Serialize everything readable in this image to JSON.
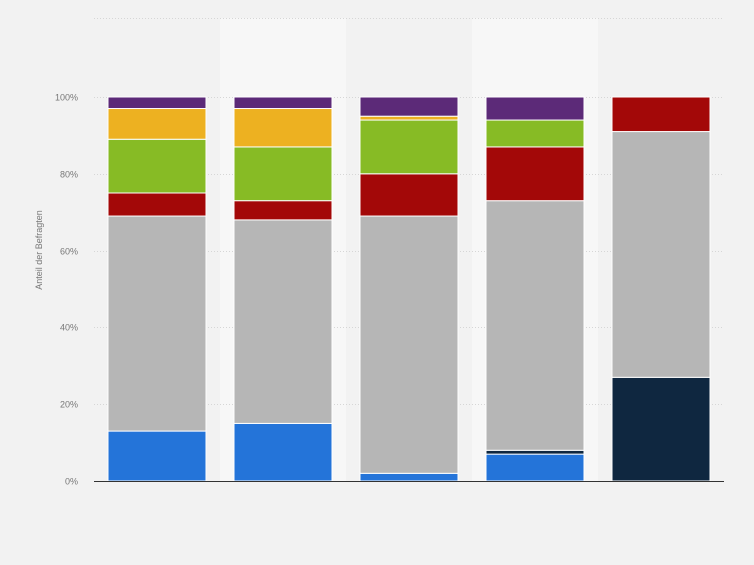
{
  "chart_data": {
    "type": "bar",
    "stacked": true,
    "title": "",
    "xlabel": "",
    "ylabel": "Anteil der Befragten",
    "ylim": [
      0,
      100
    ],
    "ytick_values": [
      0,
      20,
      40,
      60,
      80,
      100
    ],
    "ytick_labels": [
      "0%",
      "20%",
      "40%",
      "60%",
      "80%",
      "100%"
    ],
    "categories": [
      "",
      "",
      "",
      "",
      ""
    ],
    "grid": true,
    "legend": "none",
    "series": [
      {
        "color": "#2474d9",
        "values": [
          13,
          15,
          2,
          7,
          0
        ]
      },
      {
        "color": "#0f2740",
        "values": [
          0,
          0,
          0,
          1,
          27
        ]
      },
      {
        "color": "#b6b6b6",
        "values": [
          56,
          53,
          67,
          65,
          64
        ]
      },
      {
        "color": "#a30808",
        "values": [
          6,
          5,
          11,
          14,
          9
        ]
      },
      {
        "color": "#87bb25",
        "values": [
          14,
          14,
          14,
          7,
          0
        ]
      },
      {
        "color": "#edb121",
        "values": [
          8,
          10,
          1,
          0,
          0
        ]
      },
      {
        "color": "#5c2a78",
        "values": [
          3,
          3,
          5,
          6,
          0
        ]
      }
    ]
  }
}
